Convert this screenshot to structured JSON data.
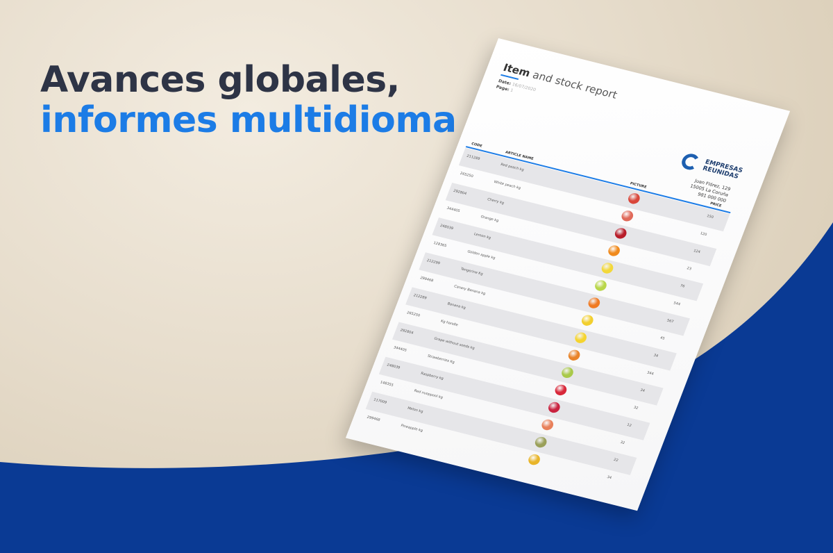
{
  "headline": {
    "line1": "Avances globales,",
    "line2": "informes multidioma"
  },
  "colors": {
    "accent": "#1c7ce6",
    "navy": "#0a3a94",
    "text": "#2e3446"
  },
  "report": {
    "title_bold": "Item",
    "title_rest": " and stock report",
    "date_label": "Date:",
    "date_value": "16/07/2020",
    "page_label": "Page:",
    "page_value": "1",
    "company": {
      "name_line1": "EMPRESAS",
      "name_line2": "REUNIDAS",
      "address1": "Juan Flórez, 129",
      "address2": "15005 La Coruña",
      "phone": "981 000 000"
    },
    "columns": {
      "code": "CODE",
      "article": "ARTICLE NAME",
      "picture": "PICTURE",
      "price": "PRICE"
    },
    "rows": [
      {
        "code": "211289",
        "name": "Red peach kg",
        "price": "150",
        "fruit": "#d9463a"
      },
      {
        "code": "265250",
        "name": "White peach kg",
        "price": "120",
        "fruit": "#e06a5a"
      },
      {
        "code": "292804",
        "name": "Cherry kg",
        "price": "124",
        "fruit": "#b81d2a"
      },
      {
        "code": "344405",
        "name": "Orange kg",
        "price": "23",
        "fruit": "#f08a1c"
      },
      {
        "code": "248039",
        "name": "Lemon kg",
        "price": "76",
        "fruit": "#f3d83a"
      },
      {
        "code": "128365",
        "name": "Golden apple kg",
        "price": "544",
        "fruit": "#b9d64a"
      },
      {
        "code": "212299",
        "name": "Tangerine Kg",
        "price": "567",
        "fruit": "#f07a22"
      },
      {
        "code": "299468",
        "name": "Canary Banana kg",
        "price": "45",
        "fruit": "#f2cf2e"
      },
      {
        "code": "212289",
        "name": "Banana kg",
        "price": "34",
        "fruit": "#f5d42f"
      },
      {
        "code": "265250",
        "name": "Kg handle",
        "price": "344",
        "fruit": "#e9842a"
      },
      {
        "code": "292804",
        "name": "Grape without seeds kg",
        "price": "34",
        "fruit": "#a9c94a"
      },
      {
        "code": "344405",
        "name": "Strawberries Kg",
        "price": "32",
        "fruit": "#d8283a"
      },
      {
        "code": "248039",
        "name": "Raspberry kg",
        "price": "12",
        "fruit": "#c9223f"
      },
      {
        "code": "148355",
        "name": "Red nuoppool kg",
        "price": "32",
        "fruit": "#e8805a"
      },
      {
        "code": "117009",
        "name": "Melon kg",
        "price": "22",
        "fruit": "#9aa05a"
      },
      {
        "code": "299468",
        "name": "Pineapple kg",
        "price": "34",
        "fruit": "#e8b52a"
      }
    ]
  }
}
